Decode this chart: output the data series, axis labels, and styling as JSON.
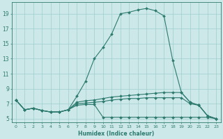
{
  "xlabel": "Humidex (Indice chaleur)",
  "bg_color": "#cde8e8",
  "line_color": "#2d7a6e",
  "grid_color": "#9fcfcf",
  "xlim": [
    -0.5,
    23.5
  ],
  "ylim": [
    4.5,
    20.5
  ],
  "xticks": [
    0,
    1,
    2,
    3,
    4,
    5,
    6,
    7,
    8,
    9,
    10,
    11,
    12,
    13,
    14,
    15,
    16,
    17,
    18,
    19,
    20,
    21,
    22,
    23
  ],
  "yticks": [
    5,
    7,
    9,
    11,
    13,
    15,
    17,
    19
  ],
  "series": [
    {
      "x": [
        0,
        1,
        2,
        3,
        4,
        5,
        6,
        7,
        8,
        9,
        10,
        11,
        12,
        13,
        14,
        15,
        16,
        17,
        18,
        19,
        20,
        21,
        22,
        23
      ],
      "y": [
        7.5,
        6.2,
        6.4,
        6.1,
        5.9,
        5.9,
        6.2,
        8.0,
        10.0,
        13.0,
        14.5,
        16.3,
        19.0,
        19.2,
        19.5,
        19.7,
        19.4,
        18.7,
        12.8,
        8.5,
        7.2,
        6.8,
        5.4,
        5.0
      ]
    },
    {
      "x": [
        0,
        1,
        2,
        3,
        4,
        5,
        6,
        7,
        8,
        9,
        10,
        11,
        12,
        13,
        14,
        15,
        16,
        17,
        18,
        19,
        20,
        21,
        22,
        23
      ],
      "y": [
        7.5,
        6.2,
        6.4,
        6.1,
        5.9,
        5.9,
        6.2,
        7.2,
        7.4,
        7.5,
        7.7,
        7.9,
        8.0,
        8.1,
        8.2,
        8.3,
        8.4,
        8.5,
        8.5,
        8.5,
        7.2,
        6.8,
        5.4,
        5.0
      ]
    },
    {
      "x": [
        0,
        1,
        2,
        3,
        4,
        5,
        6,
        7,
        8,
        9,
        10,
        11,
        12,
        13,
        14,
        15,
        16,
        17,
        18,
        19,
        20,
        21,
        22,
        23
      ],
      "y": [
        7.5,
        6.2,
        6.4,
        6.1,
        5.9,
        5.9,
        6.2,
        7.0,
        7.1,
        7.2,
        7.3,
        7.5,
        7.6,
        7.7,
        7.7,
        7.8,
        7.8,
        7.8,
        7.8,
        7.8,
        7.0,
        6.8,
        5.4,
        5.0
      ]
    },
    {
      "x": [
        0,
        1,
        2,
        3,
        4,
        5,
        6,
        7,
        8,
        9,
        10,
        11,
        12,
        13,
        14,
        15,
        16,
        17,
        18,
        19,
        20,
        21,
        22,
        23
      ],
      "y": [
        7.5,
        6.2,
        6.4,
        6.1,
        5.9,
        5.9,
        6.2,
        6.8,
        6.9,
        6.9,
        5.2,
        5.2,
        5.2,
        5.2,
        5.2,
        5.2,
        5.2,
        5.2,
        5.2,
        5.2,
        5.2,
        5.2,
        5.2,
        5.0
      ]
    }
  ]
}
